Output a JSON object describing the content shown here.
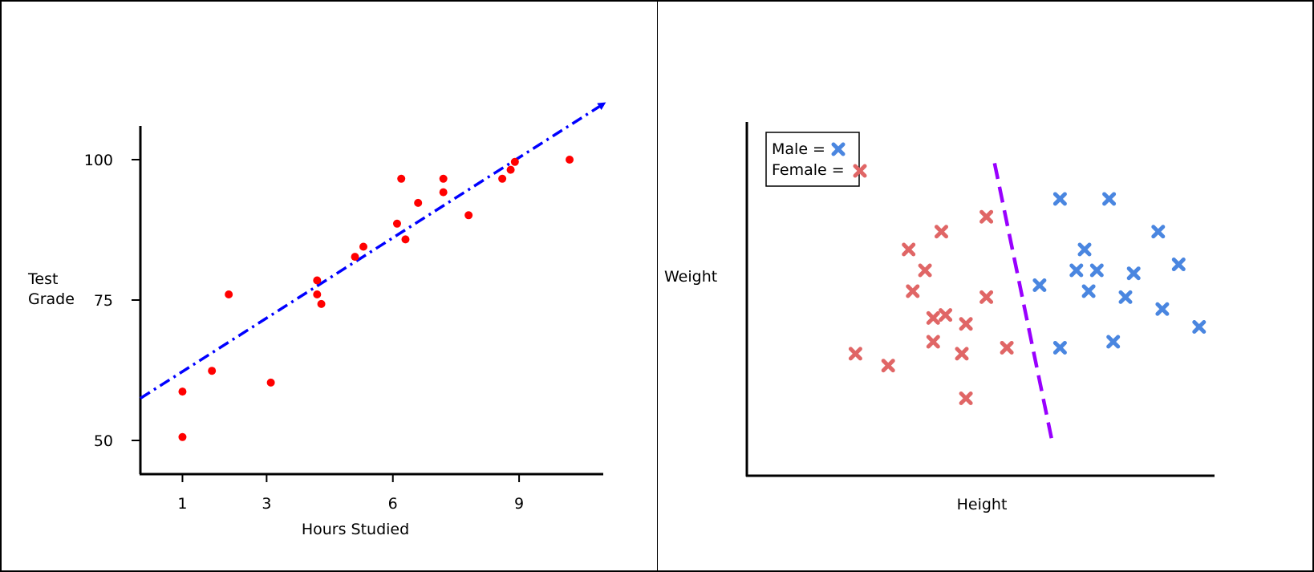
{
  "chart_data": [
    {
      "type": "scatter",
      "title": "",
      "xlabel": "Hours Studied",
      "ylabel_lines": [
        "Test",
        "Grade"
      ],
      "xticks": [
        1,
        3,
        6,
        9
      ],
      "yticks": [
        50,
        75,
        100
      ],
      "xlim": [
        0,
        11
      ],
      "ylim": [
        44,
        106
      ],
      "colors": {
        "points": "#ff0000",
        "trend": "#0000ff"
      },
      "points": [
        {
          "x": 1.0,
          "y": 50.6
        },
        {
          "x": 1.0,
          "y": 58.7
        },
        {
          "x": 1.7,
          "y": 62.4
        },
        {
          "x": 2.1,
          "y": 76.0
        },
        {
          "x": 3.1,
          "y": 60.3
        },
        {
          "x": 4.2,
          "y": 78.5
        },
        {
          "x": 4.2,
          "y": 76.0
        },
        {
          "x": 4.3,
          "y": 74.3
        },
        {
          "x": 5.1,
          "y": 82.7
        },
        {
          "x": 5.3,
          "y": 84.5
        },
        {
          "x": 6.1,
          "y": 88.6
        },
        {
          "x": 6.2,
          "y": 96.6
        },
        {
          "x": 6.3,
          "y": 85.8
        },
        {
          "x": 6.6,
          "y": 92.3
        },
        {
          "x": 7.2,
          "y": 96.6
        },
        {
          "x": 7.2,
          "y": 94.2
        },
        {
          "x": 7.8,
          "y": 90.1
        },
        {
          "x": 8.6,
          "y": 96.6
        },
        {
          "x": 8.8,
          "y": 98.2
        },
        {
          "x": 8.9,
          "y": 99.6
        },
        {
          "x": 10.2,
          "y": 100.0
        }
      ],
      "trend_line": {
        "x": [
          0,
          11
        ],
        "y": [
          57.5,
          109.9
        ],
        "style": "dash-dot with arrow"
      }
    },
    {
      "type": "scatter",
      "title": "",
      "xlabel": "Height",
      "ylabel": "Weight",
      "xlim": [
        0,
        100
      ],
      "ylim": [
        0,
        100
      ],
      "legend": {
        "position": "top-left",
        "entries": [
          {
            "label": "Male =",
            "color": "#4a86e0",
            "marker": "x"
          },
          {
            "label": "Female =",
            "color": "#e06666",
            "marker": "x"
          }
        ]
      },
      "boundary": {
        "x": [
          48,
          62
        ],
        "y": [
          98,
          5
        ],
        "color": "#9900ff",
        "style": "dashed"
      },
      "series": [
        {
          "name": "Male",
          "color": "#4a86e0",
          "points": [
            {
              "x": 64,
              "y": 86
            },
            {
              "x": 76,
              "y": 86
            },
            {
              "x": 88,
              "y": 75
            },
            {
              "x": 70,
              "y": 69
            },
            {
              "x": 68,
              "y": 62
            },
            {
              "x": 73,
              "y": 62
            },
            {
              "x": 82,
              "y": 61
            },
            {
              "x": 93,
              "y": 64
            },
            {
              "x": 59,
              "y": 57
            },
            {
              "x": 71,
              "y": 55
            },
            {
              "x": 80,
              "y": 53
            },
            {
              "x": 89,
              "y": 49
            },
            {
              "x": 98,
              "y": 43
            },
            {
              "x": 64,
              "y": 36
            },
            {
              "x": 77,
              "y": 38
            }
          ]
        },
        {
          "name": "Female",
          "color": "#e06666",
          "points": [
            {
              "x": 46,
              "y": 80
            },
            {
              "x": 35,
              "y": 75
            },
            {
              "x": 27,
              "y": 69
            },
            {
              "x": 31,
              "y": 62
            },
            {
              "x": 28,
              "y": 55
            },
            {
              "x": 46,
              "y": 53
            },
            {
              "x": 33,
              "y": 46
            },
            {
              "x": 36,
              "y": 47
            },
            {
              "x": 41,
              "y": 44
            },
            {
              "x": 33,
              "y": 38
            },
            {
              "x": 51,
              "y": 36
            },
            {
              "x": 40,
              "y": 34
            },
            {
              "x": 14,
              "y": 34
            },
            {
              "x": 22,
              "y": 30
            },
            {
              "x": 41,
              "y": 19
            }
          ]
        }
      ]
    }
  ]
}
